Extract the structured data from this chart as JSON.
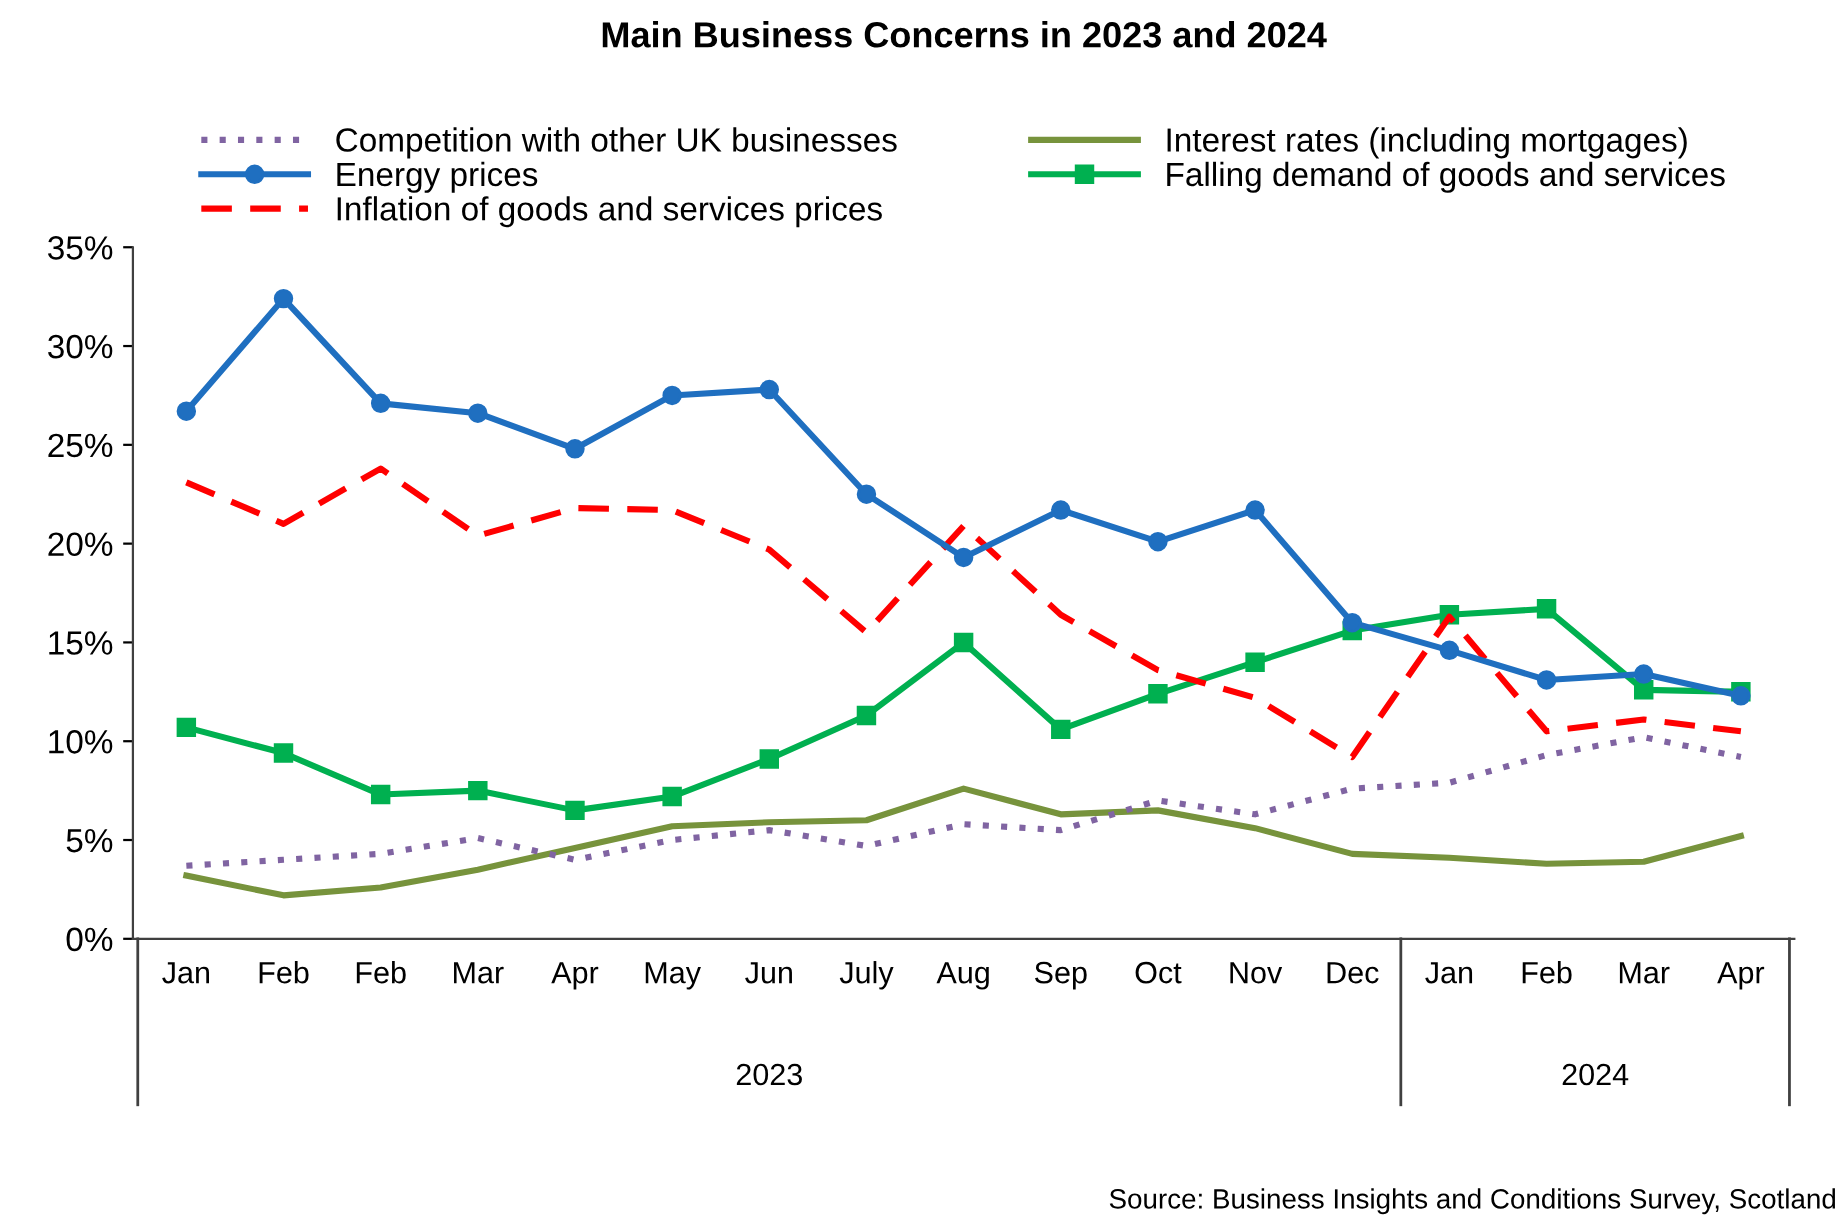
{
  "chart_data": {
    "type": "line",
    "title": "Main Business Concerns in 2023 and 2024",
    "categories": [
      "Jan",
      "Feb",
      "Feb",
      "Mar",
      "Apr",
      "May",
      "Jun",
      "July",
      "Aug",
      "Sep",
      "Oct",
      "Nov",
      "Dec",
      "Jan",
      "Feb",
      "Mar",
      "Apr"
    ],
    "series": [
      {
        "name": "Competition with other UK businesses",
        "color": "#8064a2",
        "line_style": "dotted",
        "marker": "none",
        "values": [
          3.7,
          4.0,
          4.3,
          5.1,
          4.0,
          5.0,
          5.5,
          4.7,
          5.8,
          5.5,
          7.0,
          6.3,
          7.6,
          7.9,
          9.3,
          10.2,
          9.2
        ]
      },
      {
        "name": "Energy prices",
        "color": "#1f6fc0",
        "line_style": "solid",
        "marker": "circle",
        "values": [
          26.7,
          32.4,
          27.1,
          26.6,
          24.8,
          27.5,
          27.8,
          22.5,
          19.3,
          21.7,
          20.1,
          21.7,
          16.0,
          14.6,
          13.1,
          13.4,
          12.3
        ]
      },
      {
        "name": "Inflation of goods and services prices",
        "color": "#ff0000",
        "line_style": "dashed",
        "marker": "none",
        "values": [
          23.1,
          21.0,
          23.8,
          20.4,
          21.8,
          21.7,
          19.7,
          15.5,
          20.9,
          16.4,
          13.6,
          12.2,
          9.2,
          16.3,
          10.5,
          11.1,
          10.5
        ]
      },
      {
        "name": "Interest rates (including mortgages)",
        "color": "#77933c",
        "line_style": "solid",
        "marker": "none",
        "values": [
          3.2,
          2.2,
          2.6,
          3.5,
          4.6,
          5.7,
          5.9,
          6.0,
          7.6,
          6.3,
          6.5,
          5.6,
          4.3,
          4.1,
          3.8,
          3.9,
          5.2
        ]
      },
      {
        "name": "Falling demand of goods and services",
        "color": "#00b050",
        "line_style": "solid",
        "marker": "square",
        "values": [
          10.7,
          9.4,
          7.3,
          7.5,
          6.5,
          7.2,
          9.1,
          11.3,
          15.0,
          10.6,
          12.4,
          14.0,
          15.6,
          16.4,
          16.7,
          12.6,
          12.5
        ]
      }
    ],
    "ylim": [
      0,
      35
    ],
    "yticks": [
      {
        "value": 0,
        "label": "0%"
      },
      {
        "value": 5,
        "label": "5%"
      },
      {
        "value": 10,
        "label": "10%"
      },
      {
        "value": 15,
        "label": "15%"
      },
      {
        "value": 20,
        "label": "20%"
      },
      {
        "value": 25,
        "label": "25%"
      },
      {
        "value": 30,
        "label": "30%"
      },
      {
        "value": 35,
        "label": "35%"
      }
    ],
    "grid": false,
    "legend": "top",
    "annotations": [
      "2023",
      "2024",
      "Source: Business Insights and Conditions Survey, Scotland"
    ]
  }
}
